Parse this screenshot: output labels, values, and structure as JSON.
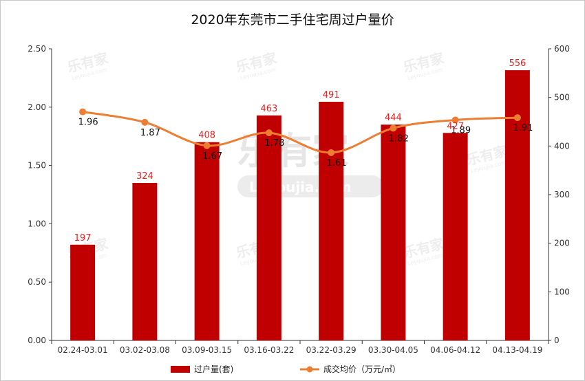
{
  "title": "2020年东莞市二手住宅周过户量价",
  "chart_data": {
    "type": "bar",
    "categories": [
      "02.24-03.01",
      "03.02-03.08",
      "03.09-03.15",
      "03.16-03.22",
      "03.22-03.29",
      "03.30-04.05",
      "04.06-04.12",
      "04.13-04.19"
    ],
    "series": [
      {
        "name": "过户量(套)",
        "type": "bar",
        "axis": "right",
        "color": "#c00000",
        "values": [
          197,
          324,
          408,
          463,
          491,
          444,
          427,
          556
        ]
      },
      {
        "name": "成交均价（万元/㎡）",
        "type": "line",
        "axis": "left",
        "color": "#ed7d31",
        "values": [
          1.96,
          1.87,
          1.67,
          1.78,
          1.61,
          1.82,
          1.89,
          1.91
        ]
      }
    ],
    "y_left": {
      "min": 0,
      "max": 2.5,
      "ticks": [
        "0.00",
        "0.50",
        "1.00",
        "1.50",
        "2.00",
        "2.50"
      ]
    },
    "y_right": {
      "min": 0,
      "max": 600,
      "ticks": [
        "0",
        "100",
        "200",
        "300",
        "400",
        "500",
        "600"
      ]
    },
    "grid": false,
    "legend_position": "bottom"
  },
  "watermark": {
    "brand": "乐有家",
    "site": "Leyoujia.com"
  }
}
